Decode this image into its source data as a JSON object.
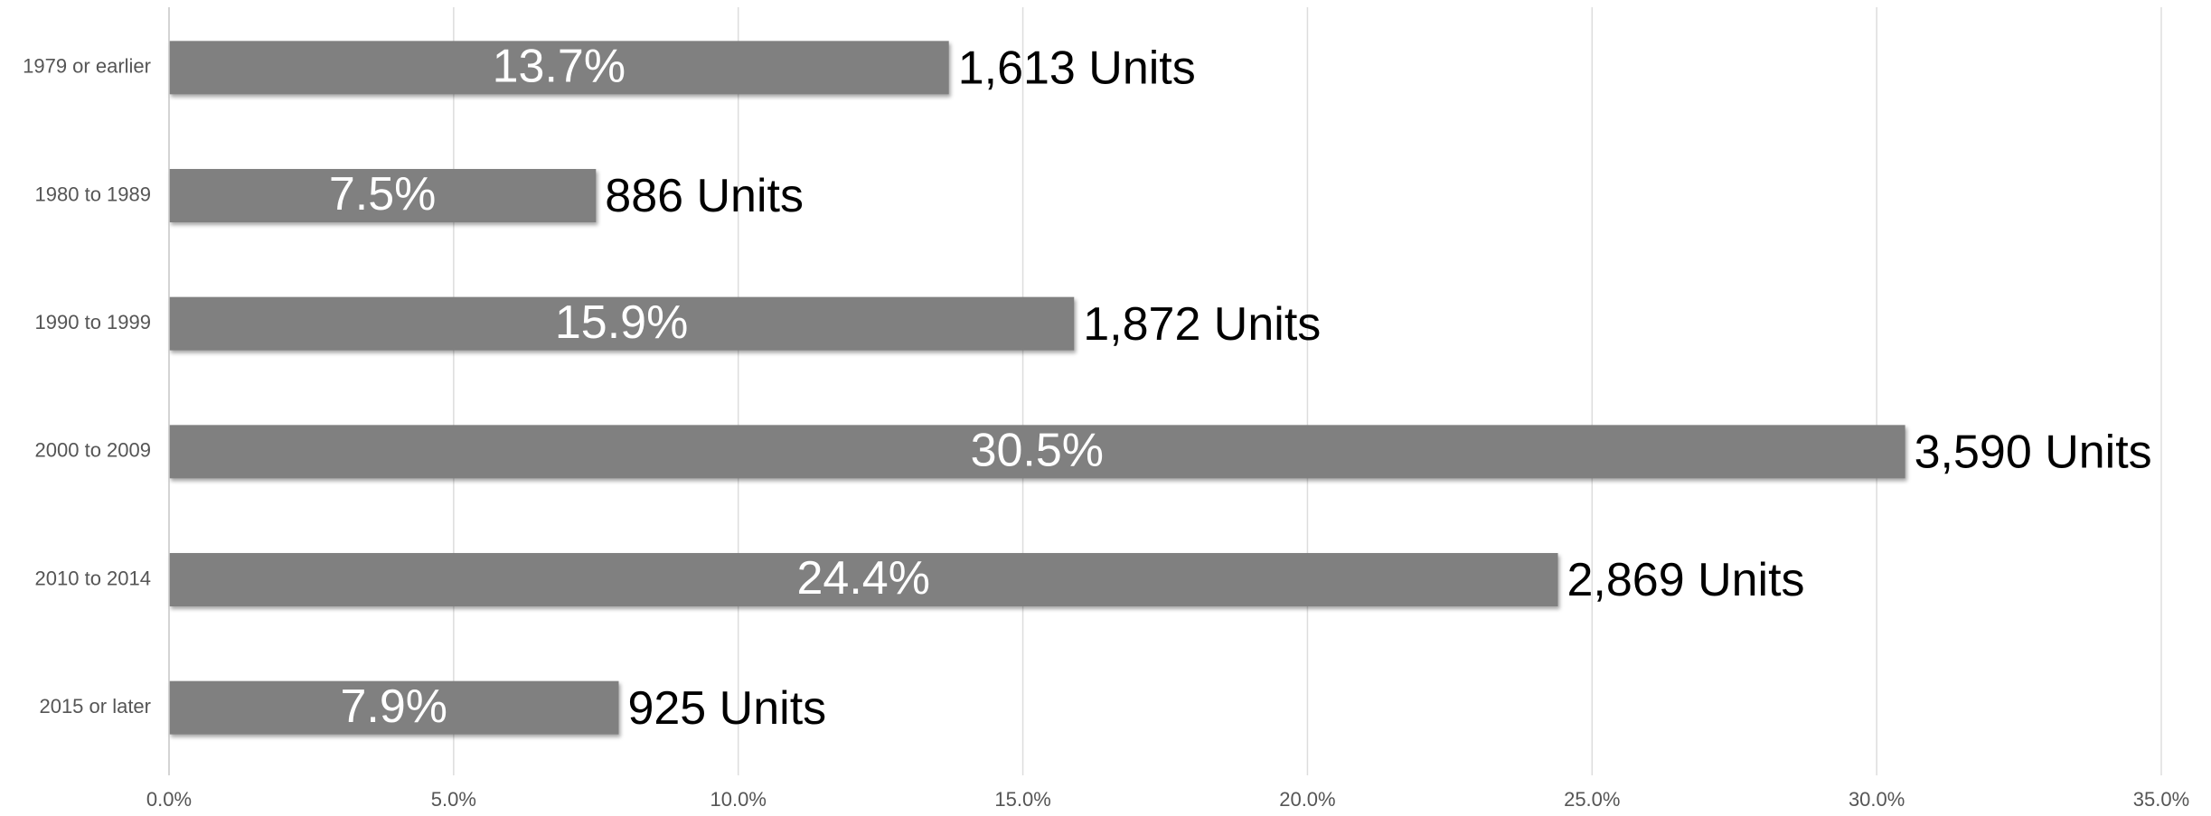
{
  "chart_data": {
    "type": "bar",
    "orientation": "horizontal",
    "categories": [
      "1979 or earlier",
      "1980 to 1989",
      "1990 to 1999",
      "2000 to 2009",
      "2010 to 2014",
      "2015 or later"
    ],
    "values": [
      13.7,
      7.5,
      15.9,
      30.5,
      24.4,
      7.9
    ],
    "value_labels": [
      "13.7%",
      "7.5%",
      "15.9%",
      "30.5%",
      "24.4%",
      "7.9%"
    ],
    "units": {
      "values": [
        1613,
        886,
        1872,
        3590,
        2869,
        925
      ],
      "value_labels": [
        "1,613 Units",
        "886 Units",
        "1,872 Units",
        "3,590 Units",
        "2,869 Units",
        "925 Units"
      ]
    },
    "color": "#808080",
    "xlim": [
      0,
      35
    ],
    "xticks": [
      {
        "value": 0,
        "label": "0.0%"
      },
      {
        "value": 5,
        "label": "5.0%"
      },
      {
        "value": 10,
        "label": "10.0%"
      },
      {
        "value": 15,
        "label": "15.0%"
      },
      {
        "value": 20,
        "label": "20.0%"
      },
      {
        "value": 25,
        "label": "25.0%"
      },
      {
        "value": 30,
        "label": "30.0%"
      },
      {
        "value": 35,
        "label": "35.0%"
      }
    ],
    "grid": true
  }
}
